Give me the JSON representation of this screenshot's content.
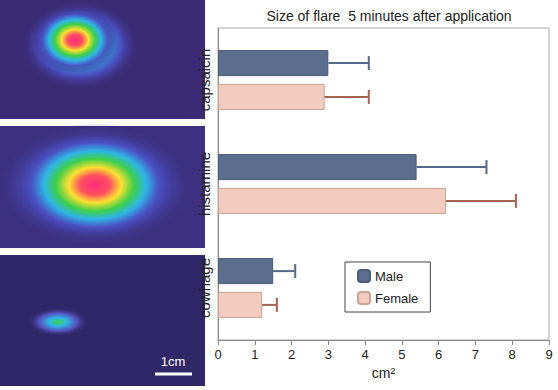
{
  "chart_data": {
    "type": "bar",
    "title": "Size of flare  5 minutes after application",
    "orientation": "horizontal",
    "categories": [
      "capsaicin",
      "histamine",
      "cowhage"
    ],
    "series": [
      {
        "name": "Male",
        "color": "#5b6e8e",
        "values": [
          3.0,
          5.4,
          1.5
        ],
        "errors": [
          1.1,
          1.9,
          0.6
        ]
      },
      {
        "name": "Female",
        "color": "#f2cdbf",
        "values": [
          2.9,
          6.2,
          1.2
        ],
        "errors": [
          1.2,
          1.9,
          0.4
        ]
      }
    ],
    "x_label": "cm²",
    "xlim": [
      0,
      9
    ],
    "xticks": [
      0,
      1,
      2,
      3,
      4,
      5,
      6,
      7,
      8,
      9
    ],
    "grid": false,
    "legend": "bottom",
    "annotations": [
      "1cm"
    ]
  }
}
